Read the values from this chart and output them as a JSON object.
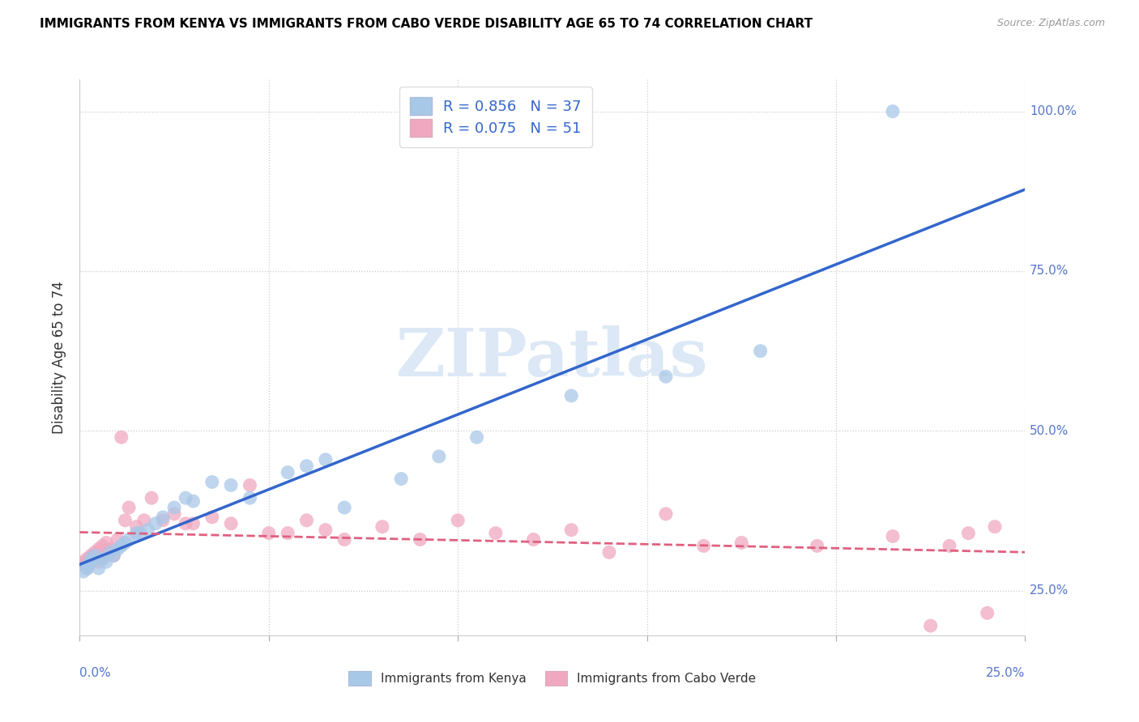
{
  "title": "IMMIGRANTS FROM KENYA VS IMMIGRANTS FROM CABO VERDE DISABILITY AGE 65 TO 74 CORRELATION CHART",
  "source": "Source: ZipAtlas.com",
  "ylabel_label": "Disability Age 65 to 74",
  "legend_kenya": "Immigrants from Kenya",
  "legend_cabo": "Immigrants from Cabo Verde",
  "R_kenya": "0.856",
  "N_kenya": "37",
  "R_cabo": "0.075",
  "N_cabo": "51",
  "kenya_color": "#a8c8e8",
  "cabo_color": "#f0a8c0",
  "kenya_line_color": "#3366cc",
  "cabo_line_color": "#e06080",
  "legend_text_color": "#3366cc",
  "right_label_color": "#5577cc",
  "watermark_color": "#dce8f5",
  "xlim_min": 0.0,
  "xlim_max": 0.25,
  "ylim_min": 0.18,
  "ylim_max": 1.05,
  "yticks": [
    0.25,
    0.5,
    0.75,
    1.0
  ],
  "ytick_labels": [
    "25.0%",
    "50.0%",
    "75.0%",
    "100.0%"
  ],
  "xticks": [
    0.0,
    0.05,
    0.1,
    0.15,
    0.2,
    0.25
  ],
  "kenya_x": [
    0.001,
    0.002,
    0.002,
    0.003,
    0.003,
    0.004,
    0.005,
    0.006,
    0.007,
    0.008,
    0.009,
    0.01,
    0.011,
    0.012,
    0.013,
    0.015,
    0.016,
    0.018,
    0.02,
    0.022,
    0.025,
    0.028,
    0.03,
    0.035,
    0.04,
    0.045,
    0.055,
    0.06,
    0.065,
    0.07,
    0.085,
    0.095,
    0.105,
    0.13,
    0.155,
    0.18,
    0.215
  ],
  "kenya_y": [
    0.28,
    0.285,
    0.29,
    0.295,
    0.3,
    0.305,
    0.285,
    0.3,
    0.295,
    0.31,
    0.305,
    0.315,
    0.32,
    0.325,
    0.33,
    0.34,
    0.34,
    0.345,
    0.355,
    0.365,
    0.38,
    0.395,
    0.39,
    0.42,
    0.415,
    0.395,
    0.435,
    0.445,
    0.455,
    0.38,
    0.425,
    0.46,
    0.49,
    0.555,
    0.585,
    0.625,
    1.0
  ],
  "cabo_x": [
    0.001,
    0.001,
    0.002,
    0.002,
    0.003,
    0.003,
    0.004,
    0.005,
    0.005,
    0.006,
    0.006,
    0.007,
    0.007,
    0.008,
    0.009,
    0.01,
    0.011,
    0.012,
    0.013,
    0.015,
    0.017,
    0.019,
    0.022,
    0.025,
    0.028,
    0.03,
    0.035,
    0.04,
    0.045,
    0.05,
    0.055,
    0.06,
    0.065,
    0.07,
    0.08,
    0.09,
    0.1,
    0.11,
    0.12,
    0.13,
    0.14,
    0.155,
    0.165,
    0.175,
    0.195,
    0.215,
    0.225,
    0.23,
    0.235,
    0.24,
    0.242
  ],
  "cabo_y": [
    0.295,
    0.29,
    0.3,
    0.285,
    0.295,
    0.305,
    0.31,
    0.295,
    0.315,
    0.3,
    0.32,
    0.305,
    0.325,
    0.315,
    0.305,
    0.33,
    0.49,
    0.36,
    0.38,
    0.35,
    0.36,
    0.395,
    0.36,
    0.37,
    0.355,
    0.355,
    0.365,
    0.355,
    0.415,
    0.34,
    0.34,
    0.36,
    0.345,
    0.33,
    0.35,
    0.33,
    0.36,
    0.34,
    0.33,
    0.345,
    0.31,
    0.37,
    0.32,
    0.325,
    0.32,
    0.335,
    0.195,
    0.32,
    0.34,
    0.215,
    0.35
  ]
}
